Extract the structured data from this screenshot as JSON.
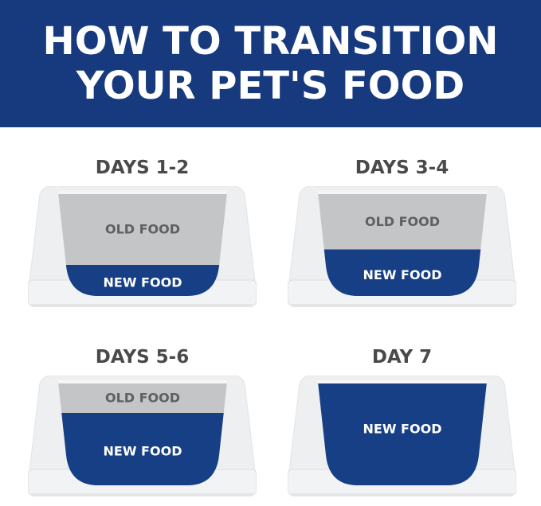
{
  "header": {
    "line1": "HOW TO TRANSITION",
    "line2": "YOUR PET'S FOOD"
  },
  "labels": {
    "old": "OLD FOOD",
    "new": "NEW FOOD"
  },
  "colors": {
    "header": "#173a7e",
    "new_food": "#173f85",
    "old_food": "#c4c5c7",
    "bowl": "#eeeff0"
  },
  "stages": [
    {
      "title": "DAYS 1-2",
      "new_fraction": 0.3
    },
    {
      "title": "DAYS 3-4",
      "new_fraction": 0.45
    },
    {
      "title": "DAYS 5-6",
      "new_fraction": 0.7
    },
    {
      "title": "DAY 7",
      "new_fraction": 1.0
    }
  ]
}
